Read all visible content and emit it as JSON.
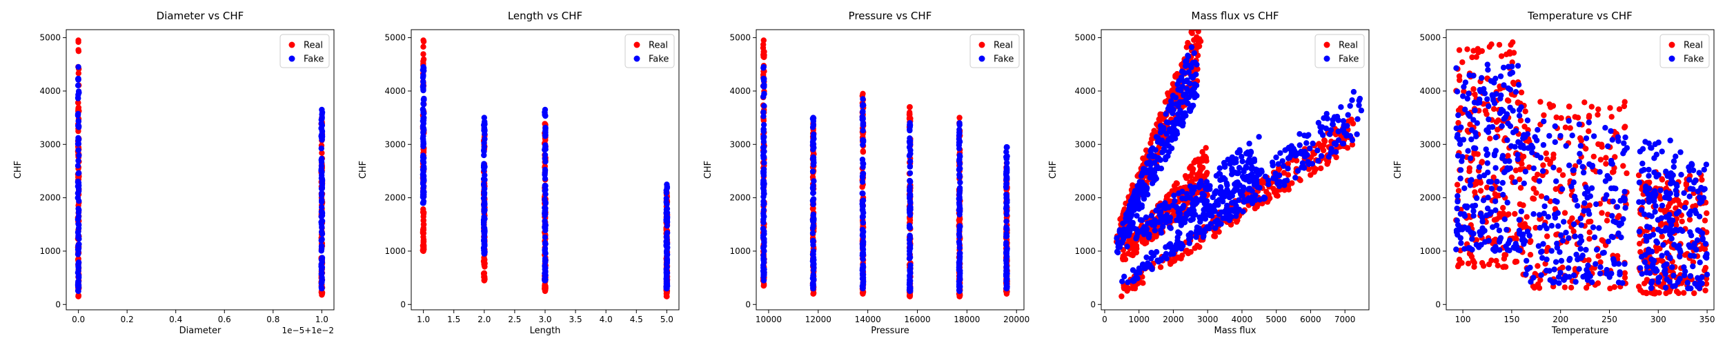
{
  "figure": {
    "panels": [
      {
        "id": "diameter",
        "title": "Diameter vs CHF",
        "xlabel": "Diameter",
        "ylabel": "CHF",
        "offset_text": "1e−5+1e−2"
      },
      {
        "id": "length",
        "title": "Length vs CHF",
        "xlabel": "Length",
        "ylabel": "CHF"
      },
      {
        "id": "pressure",
        "title": "Pressure vs CHF",
        "xlabel": "Pressure",
        "ylabel": "CHF"
      },
      {
        "id": "massflux",
        "title": "Mass flux vs CHF",
        "xlabel": "Mass flux",
        "ylabel": "CHF"
      },
      {
        "id": "temperature",
        "title": "Temperature vs CHF",
        "xlabel": "Temperature",
        "ylabel": "CHF"
      }
    ],
    "legend": {
      "placement": "top-right",
      "entries": [
        "Real",
        "Fake"
      ]
    },
    "colors": {
      "real": "#ff0000",
      "fake": "#0000ff"
    }
  },
  "chart_data": [
    {
      "type": "scatter",
      "title": "Diameter vs CHF",
      "xlabel": "Diameter",
      "ylabel": "CHF",
      "x_offset_label": "1e−5+1e−2",
      "xlim": [
        -0.05,
        1.05
      ],
      "ylim": [
        -100,
        5150
      ],
      "xticks": [
        0.0,
        0.2,
        0.4,
        0.6,
        0.8,
        1.0
      ],
      "xtick_labels": [
        "0.0",
        "0.2",
        "0.4",
        "0.6",
        "0.8",
        "1.0"
      ],
      "yticks": [
        0,
        1000,
        2000,
        3000,
        4000,
        5000
      ],
      "series": [
        {
          "name": "Real",
          "color": "#ff0000",
          "groups": [
            {
              "x": 0.0,
              "ymin": 150,
              "ymax": 4950
            },
            {
              "x": 1.0,
              "ymin": 180,
              "ymax": 3500
            }
          ]
        },
        {
          "name": "Fake",
          "color": "#0000ff",
          "groups": [
            {
              "x": 0.0,
              "ymin": 250,
              "ymax": 4450
            },
            {
              "x": 1.0,
              "ymin": 300,
              "ymax": 3650
            }
          ]
        }
      ]
    },
    {
      "type": "scatter",
      "title": "Length vs CHF",
      "xlabel": "Length",
      "ylabel": "CHF",
      "xlim": [
        0.8,
        5.2
      ],
      "ylim": [
        -100,
        5150
      ],
      "xticks": [
        1.0,
        1.5,
        2.0,
        2.5,
        3.0,
        3.5,
        4.0,
        4.5,
        5.0
      ],
      "xtick_labels": [
        "1.0",
        "1.5",
        "2.0",
        "2.5",
        "3.0",
        "3.5",
        "4.0",
        "4.5",
        "5.0"
      ],
      "yticks": [
        0,
        1000,
        2000,
        3000,
        4000,
        5000
      ],
      "series": [
        {
          "name": "Real",
          "color": "#ff0000",
          "groups": [
            {
              "x": 1.0,
              "ymin": 1000,
              "ymax": 4950
            },
            {
              "x": 2.0,
              "ymin": 450,
              "ymax": 3300
            },
            {
              "x": 3.0,
              "ymin": 250,
              "ymax": 3550
            },
            {
              "x": 5.0,
              "ymin": 150,
              "ymax": 2100
            }
          ]
        },
        {
          "name": "Fake",
          "color": "#0000ff",
          "groups": [
            {
              "x": 1.0,
              "ymin": 1900,
              "ymax": 4450
            },
            {
              "x": 2.0,
              "ymin": 950,
              "ymax": 3500
            },
            {
              "x": 3.0,
              "ymin": 450,
              "ymax": 3650
            },
            {
              "x": 5.0,
              "ymin": 300,
              "ymax": 2250
            }
          ]
        }
      ]
    },
    {
      "type": "scatter",
      "title": "Pressure vs CHF",
      "xlabel": "Pressure",
      "ylabel": "CHF",
      "xlim": [
        9500,
        20300
      ],
      "ylim": [
        -100,
        5150
      ],
      "xticks": [
        10000,
        12000,
        14000,
        16000,
        18000,
        20000
      ],
      "xtick_labels": [
        "10000",
        "12000",
        "14000",
        "16000",
        "18000",
        "20000"
      ],
      "yticks": [
        0,
        1000,
        2000,
        3000,
        4000,
        5000
      ],
      "series": [
        {
          "name": "Real",
          "color": "#ff0000",
          "groups": [
            {
              "x": 9800,
              "ymin": 350,
              "ymax": 4950
            },
            {
              "x": 11800,
              "ymin": 200,
              "ymax": 3400
            },
            {
              "x": 13800,
              "ymin": 200,
              "ymax": 3950
            },
            {
              "x": 15700,
              "ymin": 150,
              "ymax": 3700
            },
            {
              "x": 17700,
              "ymin": 150,
              "ymax": 3500
            },
            {
              "x": 19600,
              "ymin": 200,
              "ymax": 2650
            }
          ]
        },
        {
          "name": "Fake",
          "color": "#0000ff",
          "groups": [
            {
              "x": 9800,
              "ymin": 450,
              "ymax": 4450
            },
            {
              "x": 11800,
              "ymin": 300,
              "ymax": 3500
            },
            {
              "x": 13800,
              "ymin": 300,
              "ymax": 3850
            },
            {
              "x": 15700,
              "ymin": 250,
              "ymax": 3400
            },
            {
              "x": 17700,
              "ymin": 250,
              "ymax": 3400
            },
            {
              "x": 19600,
              "ymin": 300,
              "ymax": 2950
            }
          ]
        }
      ]
    },
    {
      "type": "scatter",
      "title": "Mass flux vs CHF",
      "xlabel": "Mass flux",
      "ylabel": "CHF",
      "xlim": [
        -100,
        7700
      ],
      "ylim": [
        -100,
        5150
      ],
      "xticks": [
        0,
        1000,
        2000,
        3000,
        4000,
        5000,
        6000,
        7000
      ],
      "xtick_labels": [
        "0",
        "1000",
        "2000",
        "3000",
        "4000",
        "5000",
        "6000",
        "7000"
      ],
      "yticks": [
        0,
        1000,
        2000,
        3000,
        4000,
        5000
      ],
      "series": [
        {
          "name": "Real",
          "color": "#ff0000",
          "bands": [
            {
              "x0": 300,
              "y0": 1200,
              "x1": 2800,
              "y1": 4950,
              "spread": 900
            },
            {
              "x0": 400,
              "y0": 200,
              "x1": 7300,
              "y1": 3300,
              "spread": 500
            },
            {
              "x0": 500,
              "y0": 900,
              "x1": 3000,
              "y1": 2500,
              "spread": 700
            }
          ]
        },
        {
          "name": "Fake",
          "color": "#0000ff",
          "bands": [
            {
              "x0": 300,
              "y0": 1000,
              "x1": 2700,
              "y1": 4500,
              "spread": 900
            },
            {
              "x0": 500,
              "y0": 400,
              "x1": 7500,
              "y1": 3650,
              "spread": 700
            },
            {
              "x0": 500,
              "y0": 1200,
              "x1": 4500,
              "y1": 2600,
              "spread": 800
            }
          ]
        }
      ]
    },
    {
      "type": "scatter",
      "title": "Temperature vs CHF",
      "xlabel": "Temperature",
      "ylabel": "CHF",
      "xlim": [
        83,
        357
      ],
      "ylim": [
        -100,
        5150
      ],
      "xticks": [
        100,
        150,
        200,
        250,
        300,
        350
      ],
      "xtick_labels": [
        "100",
        "150",
        "200",
        "250",
        "300",
        "350"
      ],
      "yticks": [
        0,
        1000,
        2000,
        3000,
        4000,
        5000
      ],
      "series": [
        {
          "name": "Real",
          "color": "#ff0000",
          "clusters": [
            {
              "xmin": 93,
              "xmax": 160,
              "ymin": 700,
              "ymax": 4950
            },
            {
              "xmin": 160,
              "xmax": 268,
              "ymin": 300,
              "ymax": 3800
            },
            {
              "xmin": 280,
              "xmax": 350,
              "ymin": 200,
              "ymax": 2500
            }
          ]
        },
        {
          "name": "Fake",
          "color": "#0000ff",
          "clusters": [
            {
              "xmin": 93,
              "xmax": 160,
              "ymin": 1000,
              "ymax": 4500
            },
            {
              "xmin": 160,
              "xmax": 268,
              "ymin": 400,
              "ymax": 3500
            },
            {
              "xmin": 280,
              "xmax": 350,
              "ymin": 300,
              "ymax": 3100
            }
          ]
        }
      ]
    }
  ]
}
